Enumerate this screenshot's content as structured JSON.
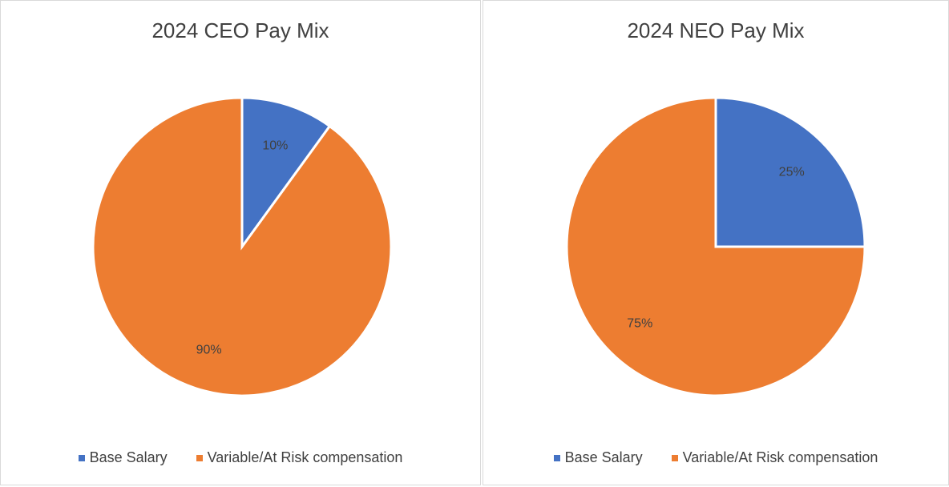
{
  "colors": {
    "base": "#4472C4",
    "variable": "#ED7D31",
    "text": "#404040",
    "border": "#d9d9d9"
  },
  "chart_data": [
    {
      "type": "pie",
      "title": "2024 CEO Pay Mix",
      "categories": [
        "Base Salary",
        "Variable/At Risk compensation"
      ],
      "values": [
        10,
        90
      ],
      "labels": [
        "10%",
        "90%"
      ],
      "legend": "bottom"
    },
    {
      "type": "pie",
      "title": "2024 NEO Pay Mix",
      "categories": [
        "Base Salary",
        "Variable/At Risk compensation"
      ],
      "values": [
        25,
        75
      ],
      "labels": [
        "25%",
        "75%"
      ],
      "legend": "bottom"
    }
  ]
}
